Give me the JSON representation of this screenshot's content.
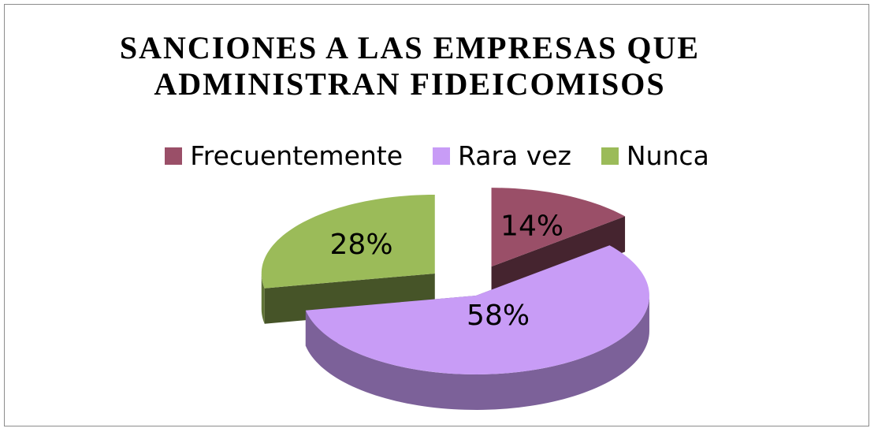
{
  "chart_data": {
    "type": "pie3d",
    "title": "SANCIONES A LAS EMPRESAS QUE ADMINISTRAN FIDEICOMISOS",
    "categories": [
      "Frecuentemente",
      "Rara vez",
      "Nunca"
    ],
    "values": [
      14,
      58,
      28
    ],
    "value_labels": [
      "14%",
      "58%",
      "28%"
    ],
    "colors": [
      "#9a4f68",
      "#c89cf6",
      "#9bbb59"
    ],
    "legend": "top"
  }
}
